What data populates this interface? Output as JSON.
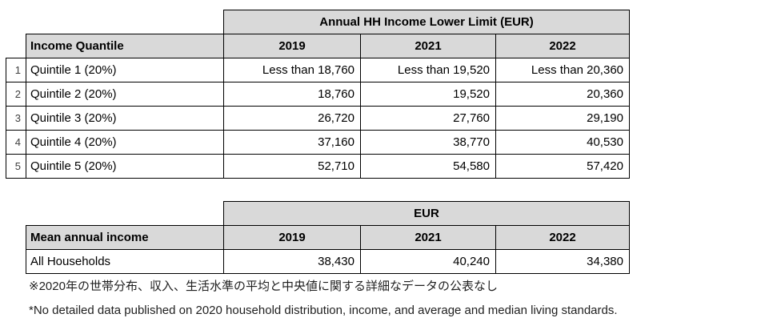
{
  "table1": {
    "title": "Annual HH Income Lower Limit (EUR)",
    "row_header": "Income Quantile",
    "years": [
      "2019",
      "2021",
      "2022"
    ],
    "rows": [
      {
        "num": "1",
        "label": "Quintile 1 (20%)",
        "values": [
          "Less than 18,760",
          "Less than 19,520",
          "Less than 20,360"
        ]
      },
      {
        "num": "2",
        "label": "Quintile 2 (20%)",
        "values": [
          "18,760",
          "19,520",
          "20,360"
        ]
      },
      {
        "num": "3",
        "label": "Quintile 3 (20%)",
        "values": [
          "26,720",
          "27,760",
          "29,190"
        ]
      },
      {
        "num": "4",
        "label": "Quintile 4 (20%)",
        "values": [
          "37,160",
          "38,770",
          "40,530"
        ]
      },
      {
        "num": "5",
        "label": "Quintile 5 (20%)",
        "values": [
          "52,710",
          "54,580",
          "57,420"
        ]
      }
    ]
  },
  "table2": {
    "title": "EUR",
    "row_header": "Mean annual income",
    "years": [
      "2019",
      "2021",
      "2022"
    ],
    "rows": [
      {
        "label": "All Households",
        "values": [
          "38,430",
          "40,240",
          "34,380"
        ]
      }
    ]
  },
  "footnotes": {
    "japanese": "※2020年の世帯分布、収入、生活水準の平均と中央値に関する詳細なデータの公表なし",
    "english": "*No detailed data published on 2020 household distribution, income, and average and median living standards."
  },
  "colors": {
    "header_fill": "#d9d9d9",
    "border": "#000000",
    "text": "#000000"
  }
}
